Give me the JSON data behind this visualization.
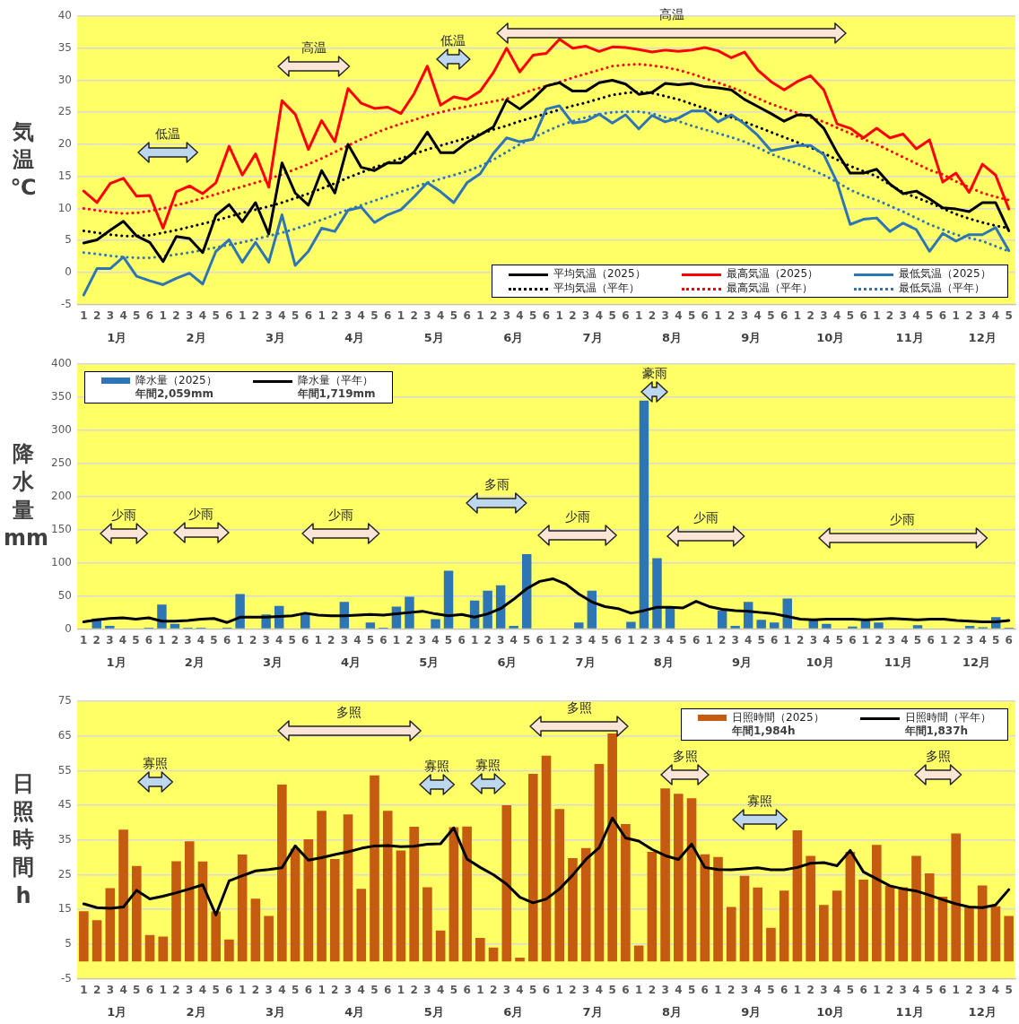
{
  "chart_data": [
    {
      "type": "line",
      "ylabel": "気温℃",
      "categories": [
        "1",
        "2",
        "3",
        "4",
        "5",
        "6",
        "1",
        "2",
        "3",
        "4",
        "5",
        "6",
        "1",
        "2",
        "3",
        "4",
        "5",
        "6",
        "1",
        "2",
        "3",
        "4",
        "5",
        "6",
        "1",
        "2",
        "3",
        "4",
        "5",
        "6",
        "1",
        "2",
        "3",
        "4",
        "5",
        "6",
        "1",
        "2",
        "3",
        "4",
        "5",
        "6",
        "1",
        "2",
        "3",
        "4",
        "5",
        "6",
        "1",
        "2",
        "3",
        "4",
        "5",
        "6",
        "1",
        "2",
        "3",
        "4",
        "5",
        "6",
        "1",
        "2",
        "3",
        "4",
        "5",
        "6",
        "1",
        "2",
        "3",
        "4",
        "5"
      ],
      "ylim": [
        -5,
        40
      ],
      "yticks": [
        -5,
        0,
        5,
        10,
        15,
        20,
        25,
        30,
        35,
        40
      ],
      "grid": "y",
      "legend": "bottom right",
      "series": [
        {
          "name": "平均気温（2025）",
          "color": "#000000",
          "values": [
            4.6,
            5.1,
            6.6,
            8.0,
            5.7,
            4.7,
            1.7,
            5.6,
            5.3,
            3.1,
            8.9,
            10.6,
            7.9,
            10.9,
            6.0,
            17.1,
            12.4,
            10.5,
            15.9,
            12.4,
            20.0,
            16.4,
            15.9,
            17.1,
            17.1,
            18.8,
            21.9,
            18.7,
            18.7,
            20.3,
            21.5,
            22.7,
            26.9,
            25.5,
            27.1,
            29.1,
            29.6,
            28.3,
            28.3,
            29.6,
            30.0,
            29.4,
            27.8,
            28.1,
            29.5,
            29.3,
            29.5,
            29.0,
            28.8,
            28.5,
            27.0,
            25.9,
            24.8,
            23.6,
            24.6,
            24.5,
            22.5,
            18.7,
            15.5,
            15.5,
            16.1,
            13.8,
            12.3,
            12.7,
            11.5,
            10.1,
            9.9,
            9.5,
            10.9,
            10.9,
            6.5
          ]
        },
        {
          "name": "最高気温（2025）",
          "color": "#ff0000",
          "values": [
            12.7,
            10.9,
            13.9,
            14.7,
            11.9,
            12.0,
            6.9,
            12.6,
            13.5,
            12.3,
            14.0,
            19.7,
            15.2,
            18.5,
            13.3,
            26.8,
            24.7,
            19.2,
            23.7,
            20.4,
            28.7,
            26.4,
            25.6,
            25.8,
            24.8,
            27.9,
            32.2,
            26.1,
            27.4,
            27.0,
            28.3,
            31.2,
            35.0,
            31.3,
            33.9,
            34.2,
            36.4,
            35.0,
            35.3,
            34.5,
            35.2,
            35.1,
            34.8,
            34.4,
            34.7,
            34.5,
            34.7,
            35.1,
            34.6,
            33.5,
            34.4,
            31.6,
            29.8,
            28.5,
            29.8,
            30.7,
            28.5,
            23.2,
            22.5,
            21.0,
            22.5,
            21.0,
            21.6,
            19.3,
            20.7,
            14.1,
            15.5,
            12.5,
            16.9,
            15.2,
            9.9
          ]
        },
        {
          "name": "最低気温（2025）",
          "color": "#2e75b6",
          "values": [
            -3.5,
            0.6,
            0.6,
            2.4,
            -0.6,
            -1.3,
            -1.9,
            -0.9,
            -0.1,
            -1.8,
            3.3,
            5.1,
            1.6,
            4.7,
            1.6,
            9.0,
            1.1,
            3.3,
            6.9,
            6.4,
            9.7,
            10.2,
            7.8,
            9.0,
            9.8,
            11.8,
            14.0,
            12.6,
            10.9,
            14.0,
            15.4,
            18.6,
            21.0,
            20.4,
            20.8,
            25.5,
            26.0,
            23.3,
            23.6,
            24.7,
            23.3,
            24.6,
            22.4,
            24.5,
            23.5,
            24.1,
            25.2,
            25.2,
            23.5,
            24.6,
            23.2,
            21.4,
            19.0,
            19.4,
            19.8,
            19.8,
            18.4,
            14.1,
            7.5,
            8.3,
            8.5,
            6.4,
            7.7,
            6.7,
            3.3,
            6.1,
            4.9,
            5.9,
            5.9,
            7.0,
            3.4
          ]
        },
        {
          "name": "平均気温（平年）",
          "color": "#000000",
          "line_style": "dotted",
          "values": [
            6.5,
            6.2,
            5.9,
            5.7,
            5.7,
            5.8,
            6.2,
            6.6,
            7.1,
            7.6,
            8.1,
            8.7,
            9.3,
            9.8,
            10.3,
            10.9,
            11.6,
            12.3,
            13.1,
            13.9,
            14.8,
            15.6,
            16.4,
            17.1,
            17.8,
            18.5,
            19.2,
            19.8,
            20.4,
            21.0,
            21.6,
            22.3,
            22.9,
            23.6,
            24.2,
            24.8,
            25.4,
            26.0,
            26.5,
            27.1,
            27.7,
            28.0,
            28.2,
            28.0,
            27.5,
            27.0,
            26.3,
            25.6,
            24.9,
            24.2,
            23.5,
            22.7,
            21.9,
            21.1,
            20.3,
            19.5,
            18.6,
            17.6,
            16.6,
            15.8,
            15.0,
            13.7,
            12.5,
            11.7,
            10.9,
            10.0,
            9.1,
            8.4,
            7.8,
            7.3,
            6.9
          ]
        },
        {
          "name": "最高気温（平年）",
          "color": "#ff0000",
          "line_style": "dotted",
          "values": [
            10.0,
            9.7,
            9.4,
            9.2,
            9.3,
            9.6,
            10.0,
            10.5,
            11.0,
            11.6,
            12.2,
            12.8,
            13.4,
            14.0,
            14.6,
            15.3,
            16.1,
            16.9,
            17.8,
            18.8,
            19.8,
            20.8,
            21.7,
            22.5,
            23.2,
            23.8,
            24.5,
            25.0,
            25.5,
            25.9,
            26.3,
            26.7,
            27.1,
            27.8,
            28.5,
            29.1,
            29.7,
            30.4,
            31.0,
            31.6,
            32.2,
            32.4,
            32.5,
            32.3,
            32.0,
            31.6,
            31.0,
            30.3,
            29.6,
            28.9,
            28.1,
            27.2,
            26.3,
            25.6,
            24.9,
            24.2,
            23.5,
            22.6,
            21.7,
            20.8,
            20.0,
            19.0,
            18.0,
            17.0,
            16.0,
            15.3,
            14.2,
            13.3,
            12.4,
            11.8,
            11.3
          ]
        },
        {
          "name": "最低気温（平年）",
          "color": "#2e75b6",
          "line_style": "dotted",
          "values": [
            3.1,
            2.9,
            2.6,
            2.4,
            2.3,
            2.3,
            2.5,
            2.8,
            3.1,
            3.5,
            3.9,
            4.3,
            4.7,
            5.2,
            5.7,
            6.2,
            6.8,
            7.5,
            8.2,
            9.0,
            9.8,
            10.5,
            11.2,
            11.9,
            12.6,
            13.3,
            14.0,
            14.6,
            15.2,
            15.8,
            16.6,
            17.6,
            18.8,
            20.0,
            21.0,
            22.0,
            22.9,
            23.6,
            24.2,
            24.7,
            25.0,
            25.1,
            25.1,
            24.8,
            24.2,
            23.6,
            22.9,
            22.3,
            21.7,
            21.1,
            20.4,
            19.5,
            18.5,
            17.7,
            17.0,
            16.1,
            15.2,
            14.1,
            12.9,
            12.0,
            11.3,
            10.4,
            9.5,
            8.5,
            7.5,
            6.7,
            5.9,
            5.4,
            4.9,
            4.1,
            3.3
          ]
        }
      ],
      "annotations": [
        "低温",
        "高温",
        "低温",
        "高温",
        "1月",
        "2月",
        "3月",
        "4月",
        "5月",
        "6月",
        "7月",
        "8月",
        "9月",
        "10月",
        "11月",
        "12月"
      ]
    },
    {
      "type": "bar",
      "ylabel": "降水量mm",
      "categories": [
        "1",
        "2",
        "3",
        "4",
        "5",
        "6",
        "1",
        "2",
        "3",
        "4",
        "5",
        "6",
        "1",
        "2",
        "3",
        "4",
        "5",
        "6",
        "1",
        "2",
        "3",
        "4",
        "5",
        "6",
        "1",
        "2",
        "3",
        "4",
        "5",
        "6",
        "1",
        "2",
        "3",
        "4",
        "5",
        "6",
        "1",
        "2",
        "3",
        "4",
        "5",
        "6",
        "1",
        "2",
        "3",
        "4",
        "5",
        "6",
        "1",
        "2",
        "3",
        "4",
        "5",
        "6",
        "1",
        "2",
        "3",
        "4",
        "5",
        "6",
        "1",
        "2",
        "3",
        "4",
        "5",
        "6",
        "1",
        "2",
        "3",
        "4",
        "5",
        "6"
      ],
      "ylim": [
        0,
        400
      ],
      "yticks": [
        0,
        50,
        100,
        150,
        200,
        250,
        300,
        350,
        400
      ],
      "grid": "y",
      "legend": "top left",
      "series": [
        {
          "name": "降水量（2025）",
          "color": "#2e75b6",
          "values": [
            0,
            16,
            5,
            0,
            0,
            2,
            37,
            8,
            2,
            2,
            0,
            2,
            53,
            0,
            22,
            35,
            0,
            22,
            0,
            0,
            41,
            0,
            10,
            2,
            34,
            49,
            0,
            15,
            88,
            0,
            43,
            58,
            66,
            5,
            113,
            0,
            0,
            0,
            10,
            58,
            0,
            0,
            11,
            345,
            107,
            32,
            0,
            0,
            0,
            28,
            5,
            41,
            14,
            10,
            46,
            0,
            15,
            8,
            0,
            4,
            15,
            10,
            0,
            0,
            6,
            0,
            0,
            0,
            5,
            3,
            18,
            2
          ]
        },
        {
          "name": "降水量（平年）",
          "type": "line",
          "color": "#000000",
          "values": [
            11,
            14,
            16,
            17,
            15,
            17,
            12,
            12,
            13,
            15,
            16,
            10,
            18,
            18,
            18,
            19,
            20,
            24,
            21,
            20,
            20,
            21,
            22,
            21,
            23,
            25,
            27,
            23,
            20,
            22,
            18,
            23,
            31,
            45,
            61,
            72,
            76,
            68,
            53,
            41,
            34,
            31,
            24,
            28,
            33,
            33,
            32,
            42,
            34,
            30,
            28,
            27,
            25,
            23,
            19,
            15,
            14,
            15,
            15,
            15,
            14,
            15,
            16,
            15,
            14,
            15,
            15,
            13,
            12,
            11,
            11,
            13
          ]
        }
      ],
      "annotations": [
        "少雨",
        "少雨",
        "少雨",
        "多雨",
        "少雨",
        "豪雨",
        "少雨",
        "少雨",
        "1月",
        "2月",
        "3月",
        "4月",
        "5月",
        "6月",
        "7月",
        "8月",
        "9月",
        "10月",
        "11月",
        "12月",
        "年間2,059mm",
        "年間1,719mm"
      ]
    },
    {
      "type": "bar",
      "ylabel": "日照時間h",
      "categories": [
        "1",
        "2",
        "3",
        "4",
        "5",
        "6",
        "1",
        "2",
        "3",
        "4",
        "5",
        "6",
        "1",
        "2",
        "3",
        "4",
        "5",
        "6",
        "1",
        "2",
        "3",
        "4",
        "5",
        "6",
        "1",
        "2",
        "3",
        "4",
        "5",
        "6",
        "1",
        "2",
        "3",
        "4",
        "5",
        "6",
        "1",
        "2",
        "3",
        "4",
        "5",
        "6",
        "1",
        "2",
        "3",
        "4",
        "5",
        "6",
        "1",
        "2",
        "3",
        "4",
        "5",
        "6",
        "1",
        "2",
        "3",
        "4",
        "5",
        "6",
        "1",
        "2",
        "3",
        "4",
        "5",
        "6",
        "1",
        "2",
        "3",
        "4",
        "5"
      ],
      "ylim": [
        -5,
        75
      ],
      "yticks": [
        -5,
        5,
        15,
        25,
        35,
        45,
        55,
        65,
        75
      ],
      "grid": "y",
      "legend": "top right",
      "series": [
        {
          "name": "日照時間（2025）",
          "color": "#c55a11",
          "values": [
            14.5,
            11.9,
            21.1,
            38.0,
            27.5,
            7.6,
            7.2,
            28.9,
            34.6,
            28.8,
            14.4,
            6.3,
            30.8,
            18.1,
            13.1,
            51.0,
            32.5,
            35.2,
            43.4,
            29.5,
            42.4,
            20.9,
            53.6,
            43.4,
            32.0,
            38.8,
            21.4,
            8.9,
            38.7,
            38.9,
            6.8,
            4.0,
            45.0,
            1.1,
            54.1,
            59.3,
            43.9,
            29.8,
            32.7,
            56.9,
            65.7,
            39.6,
            4.6,
            31.6,
            49.9,
            48.3,
            47.0,
            30.9,
            30.1,
            15.7,
            24.7,
            21.3,
            9.7,
            20.4,
            37.8,
            30.4,
            16.3,
            20.4,
            31.6,
            23.6,
            33.6,
            21.8,
            21.4,
            30.4,
            25.4,
            18.7,
            36.9,
            15.5,
            21.9,
            15.9,
            13.1
          ]
        },
        {
          "name": "日照時間（平年）",
          "type": "line",
          "color": "#000000",
          "values": [
            16.6,
            15.5,
            15.3,
            15.7,
            20.5,
            18.0,
            18.8,
            19.8,
            20.9,
            22.1,
            13.4,
            23.2,
            24.7,
            26.1,
            26.5,
            27.0,
            33.3,
            29.2,
            29.9,
            30.8,
            31.6,
            32.6,
            33.3,
            33.4,
            33.1,
            33.2,
            33.8,
            33.9,
            38.5,
            29.5,
            27.1,
            25.0,
            22.3,
            18.5,
            16.9,
            18.0,
            20.9,
            24.9,
            29.4,
            32.8,
            41.3,
            35.6,
            34.7,
            32.3,
            30.5,
            29.4,
            33.8,
            27.1,
            26.5,
            26.4,
            26.7,
            27.0,
            26.4,
            26.4,
            27.1,
            28.3,
            28.5,
            27.6,
            32.0,
            25.8,
            23.8,
            21.8,
            20.9,
            20.3,
            19.1,
            17.8,
            16.6,
            15.7,
            15.5,
            16.3,
            20.7
          ]
        }
      ],
      "annotations": [
        "寡照",
        "多照",
        "寡照",
        "寡照",
        "多照",
        "多照",
        "寡照",
        "多照",
        "1月",
        "2月",
        "3月",
        "4月",
        "5月",
        "6月",
        "7月",
        "8月",
        "9月",
        "10月",
        "11月",
        "12月",
        "年間1,984h",
        "年間1,837h"
      ]
    }
  ]
}
